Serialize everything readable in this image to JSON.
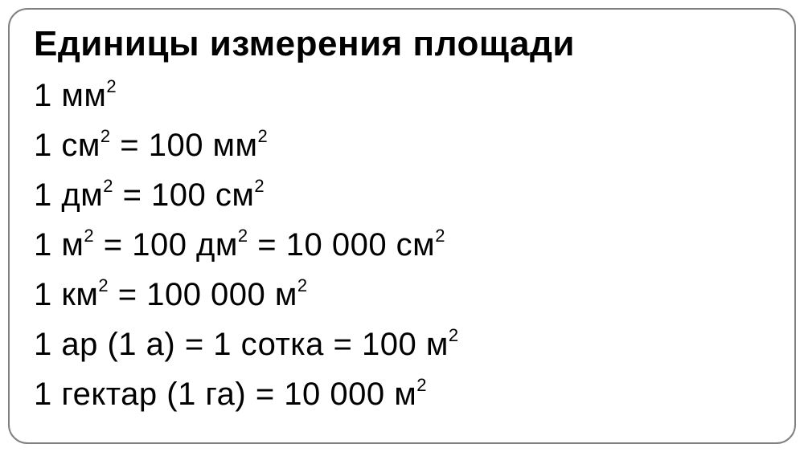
{
  "card": {
    "title": "Единицы измерения площади",
    "title_fontsize": 44,
    "title_fontweight": 700,
    "line_fontsize": 40,
    "line_fontweight": 400,
    "text_color": "#000000",
    "background_color": "#ffffff",
    "border_color": "#808080",
    "border_radius": 24,
    "lines": [
      {
        "parts": [
          {
            "t": "1 мм",
            "sup": "2"
          }
        ]
      },
      {
        "parts": [
          {
            "t": "1 см",
            "sup": "2"
          },
          {
            "t": " = 100 мм",
            "sup": "2"
          }
        ]
      },
      {
        "parts": [
          {
            "t": "1 дм",
            "sup": "2"
          },
          {
            "t": " = 100 см",
            "sup": "2"
          }
        ]
      },
      {
        "parts": [
          {
            "t": "1 м",
            "sup": "2"
          },
          {
            "t": " = 100 дм",
            "sup": "2"
          },
          {
            "t": " = 10 000 см",
            "sup": "2"
          }
        ]
      },
      {
        "parts": [
          {
            "t": "1 км",
            "sup": "2"
          },
          {
            "t": " = 100 000 м",
            "sup": "2"
          }
        ]
      },
      {
        "parts": [
          {
            "t": "1 ар (1 а) = 1 сотка = 100 м",
            "sup": "2"
          }
        ]
      },
      {
        "parts": [
          {
            "t": "1 гектар (1 га) = 10 000 м",
            "sup": "2"
          }
        ]
      }
    ]
  }
}
